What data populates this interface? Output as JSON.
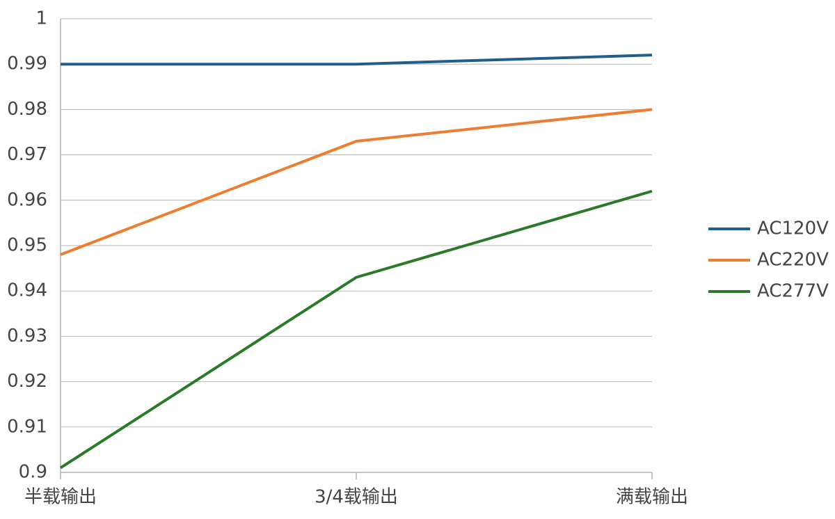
{
  "chart_data": {
    "type": "line",
    "categories": [
      "半载输出",
      "3/4载输出",
      "满载输出"
    ],
    "series": [
      {
        "name": "AC120V",
        "color": "#215f8a",
        "values": [
          0.99,
          0.99,
          0.992
        ]
      },
      {
        "name": "AC220V",
        "color": "#ed7d31",
        "values": [
          0.948,
          0.973,
          0.98
        ]
      },
      {
        "name": "AC277V",
        "color": "#2a7a2a",
        "values": [
          0.901,
          0.943,
          0.962
        ]
      }
    ],
    "ylim": [
      0.9,
      1
    ],
    "yticks": [
      0.9,
      0.91,
      0.92,
      0.93,
      0.94,
      0.95,
      0.96,
      0.97,
      0.98,
      0.99,
      1
    ],
    "grid": true,
    "legend": "right"
  }
}
